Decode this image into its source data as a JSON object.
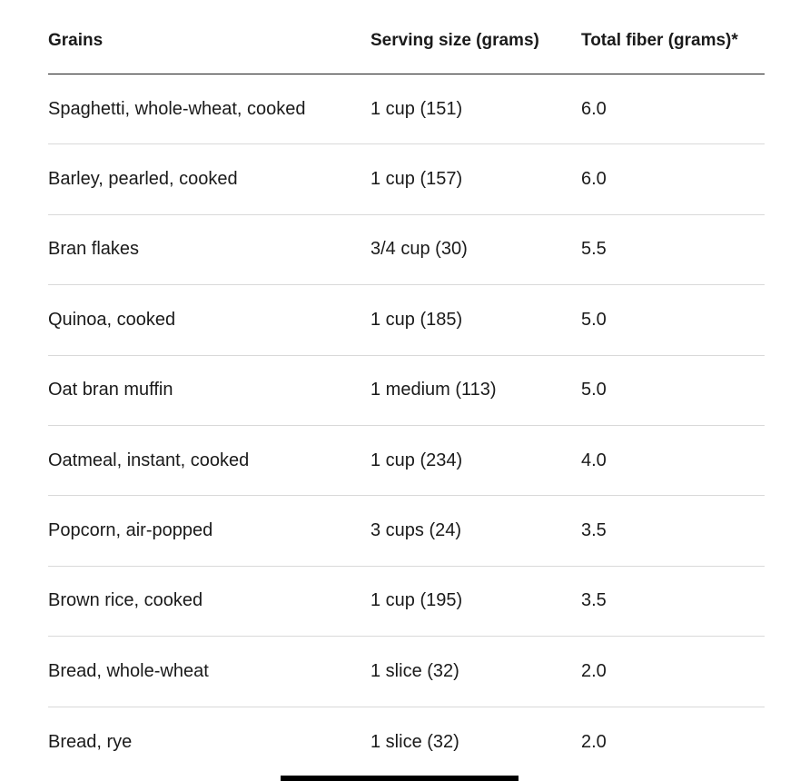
{
  "table": {
    "headers": {
      "grains": "Grains",
      "serving_size": "Serving size (grams)",
      "total_fiber": "Total fiber (grams)*"
    },
    "rows": [
      {
        "grain": "Spaghetti, whole-wheat, cooked",
        "serving": "1 cup (151)",
        "fiber": "6.0"
      },
      {
        "grain": "Barley, pearled, cooked",
        "serving": "1 cup (157)",
        "fiber": "6.0"
      },
      {
        "grain": "Bran flakes",
        "serving": "3/4 cup (30)",
        "fiber": "5.5"
      },
      {
        "grain": "Quinoa, cooked",
        "serving": "1 cup (185)",
        "fiber": "5.0"
      },
      {
        "grain": "Oat bran muffin",
        "serving": "1 medium (113)",
        "fiber": "5.0"
      },
      {
        "grain": "Oatmeal, instant, cooked",
        "serving": "1 cup (234)",
        "fiber": "4.0"
      },
      {
        "grain": "Popcorn, air-popped",
        "serving": "3 cups (24)",
        "fiber": "3.5"
      },
      {
        "grain": "Brown rice, cooked",
        "serving": "1 cup (195)",
        "fiber": "3.5"
      },
      {
        "grain": "Bread, whole-wheat",
        "serving": "1 slice (32)",
        "fiber": "2.0"
      },
      {
        "grain": "Bread, rye",
        "serving": "1 slice (32)",
        "fiber": "2.0"
      }
    ]
  },
  "colors": {
    "text": "#1a1a1a",
    "rule": "#1a1a1a",
    "divider": "#d9d9d9",
    "background": "#ffffff"
  }
}
